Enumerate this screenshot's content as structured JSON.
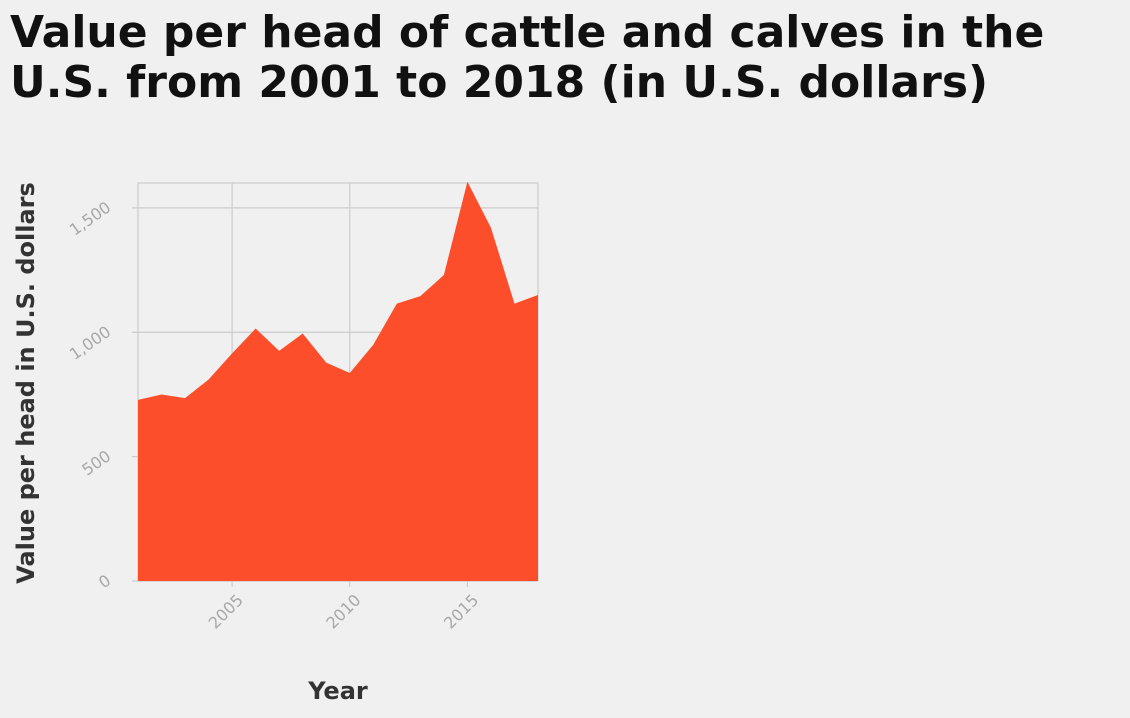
{
  "chart_data": {
    "type": "area",
    "title": "Value per head of cattle and calves in the U.S. from 2001 to 2018 (in U.S. dollars)",
    "xlabel": "Year",
    "ylabel": "Value per head in U.S. dollars",
    "x": [
      2001,
      2002,
      2003,
      2004,
      2005,
      2006,
      2007,
      2008,
      2009,
      2010,
      2011,
      2012,
      2013,
      2014,
      2015,
      2016,
      2017,
      2018
    ],
    "series": [
      {
        "values": [
          728,
          750,
          735,
          810,
          915,
          1015,
          925,
          995,
          878,
          836,
          950,
          1115,
          1145,
          1230,
          1605,
          1420,
          1115,
          1150
        ],
        "color": "#fc4e2a"
      }
    ],
    "xlim": [
      2001,
      2018
    ],
    "ylim": [
      0,
      1600
    ],
    "xticks": [
      {
        "value": 2005,
        "label": "2005"
      },
      {
        "value": 2010,
        "label": "2010"
      },
      {
        "value": 2015,
        "label": "2015"
      }
    ],
    "yticks": [
      {
        "value": 0,
        "label": "0"
      },
      {
        "value": 500,
        "label": "500"
      },
      {
        "value": 1000,
        "label": "1,000"
      },
      {
        "value": 1500,
        "label": "1,500"
      }
    ],
    "grid": true,
    "legend": "none"
  }
}
